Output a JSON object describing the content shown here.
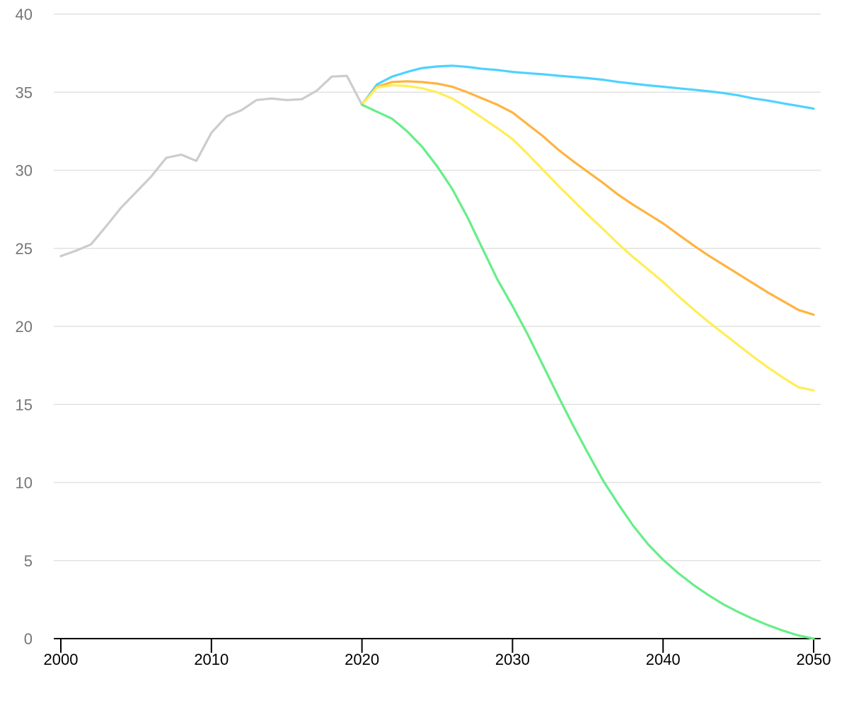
{
  "chart_data": {
    "type": "line",
    "title": "",
    "xlabel": "",
    "ylabel": "",
    "xlim": [
      2000,
      2050
    ],
    "ylim": [
      0,
      40
    ],
    "grid": true,
    "legend": "none",
    "x_ticks": [
      "2000",
      "2010",
      "2020",
      "2030",
      "2040",
      "2050"
    ],
    "y_ticks": [
      "0",
      "5",
      "10",
      "15",
      "20",
      "25",
      "30",
      "35",
      "40"
    ],
    "colors": {
      "historical": "#cccccc",
      "blue": "#4dd2ff",
      "orange": "#ffb340",
      "yellow": "#ffee55",
      "green": "#66ee88",
      "grid": "#e2e2e2",
      "axis": "#000000"
    },
    "series": [
      {
        "color": "#cccccc",
        "x": [
          2000,
          2001,
          2002,
          2003,
          2004,
          2005,
          2006,
          2007,
          2008,
          2009,
          2010,
          2011,
          2012,
          2013,
          2014,
          2015,
          2016,
          2017,
          2018,
          2019,
          2020
        ],
        "values": [
          24.5,
          24.85,
          25.25,
          26.4,
          27.6,
          28.6,
          29.6,
          30.8,
          31.0,
          30.6,
          32.4,
          33.45,
          33.85,
          34.5,
          34.6,
          34.5,
          34.55,
          35.1,
          36.0,
          36.05,
          34.2
        ]
      },
      {
        "color": "#4dd2ff",
        "x": [
          2020,
          2021,
          2022,
          2023,
          2024,
          2025,
          2026,
          2027,
          2028,
          2029,
          2030,
          2031,
          2032,
          2033,
          2034,
          2035,
          2036,
          2037,
          2038,
          2039,
          2040,
          2041,
          2042,
          2043,
          2044,
          2045,
          2046,
          2047,
          2048,
          2049,
          2050
        ],
        "values": [
          34.2,
          35.5,
          36.0,
          36.3,
          36.55,
          36.65,
          36.7,
          36.62,
          36.5,
          36.42,
          36.3,
          36.22,
          36.15,
          36.06,
          35.98,
          35.9,
          35.8,
          35.66,
          35.55,
          35.44,
          35.35,
          35.25,
          35.16,
          35.06,
          34.95,
          34.8,
          34.6,
          34.46,
          34.28,
          34.12,
          33.95
        ]
      },
      {
        "color": "#ffb340",
        "x": [
          2020,
          2021,
          2022,
          2023,
          2024,
          2025,
          2026,
          2027,
          2028,
          2029,
          2030,
          2031,
          2032,
          2033,
          2034,
          2035,
          2036,
          2037,
          2038,
          2039,
          2040,
          2041,
          2042,
          2043,
          2044,
          2045,
          2046,
          2047,
          2048,
          2049,
          2050
        ],
        "values": [
          34.2,
          35.35,
          35.65,
          35.7,
          35.65,
          35.55,
          35.35,
          35.0,
          34.6,
          34.2,
          33.7,
          32.95,
          32.2,
          31.35,
          30.6,
          29.9,
          29.2,
          28.45,
          27.8,
          27.2,
          26.6,
          25.9,
          25.2,
          24.55,
          23.95,
          23.35,
          22.75,
          22.15,
          21.6,
          21.05,
          20.75
        ]
      },
      {
        "color": "#ffee55",
        "x": [
          2020,
          2021,
          2022,
          2023,
          2024,
          2025,
          2026,
          2027,
          2028,
          2029,
          2030,
          2031,
          2032,
          2033,
          2034,
          2035,
          2036,
          2037,
          2038,
          2039,
          2040,
          2041,
          2042,
          2043,
          2044,
          2045,
          2046,
          2047,
          2048,
          2049,
          2050
        ],
        "values": [
          34.2,
          35.3,
          35.45,
          35.4,
          35.25,
          35.0,
          34.6,
          34.0,
          33.35,
          32.7,
          32.0,
          31.05,
          30.05,
          29.05,
          28.1,
          27.15,
          26.25,
          25.3,
          24.45,
          23.65,
          22.85,
          21.95,
          21.1,
          20.3,
          19.55,
          18.8,
          18.05,
          17.35,
          16.7,
          16.1,
          15.9
        ]
      },
      {
        "color": "#66ee88",
        "x": [
          2020,
          2021,
          2022,
          2023,
          2024,
          2025,
          2026,
          2027,
          2028,
          2029,
          2030,
          2031,
          2032,
          2033,
          2034,
          2035,
          2036,
          2037,
          2038,
          2039,
          2040,
          2041,
          2042,
          2043,
          2044,
          2045,
          2046,
          2047,
          2048,
          2049,
          2050
        ],
        "values": [
          34.2,
          33.75,
          33.3,
          32.5,
          31.5,
          30.25,
          28.8,
          27.0,
          25.0,
          23.0,
          21.3,
          19.5,
          17.55,
          15.6,
          13.7,
          11.9,
          10.15,
          8.65,
          7.25,
          6.05,
          5.05,
          4.2,
          3.45,
          2.8,
          2.2,
          1.7,
          1.25,
          0.85,
          0.5,
          0.2,
          0.0
        ]
      }
    ]
  }
}
